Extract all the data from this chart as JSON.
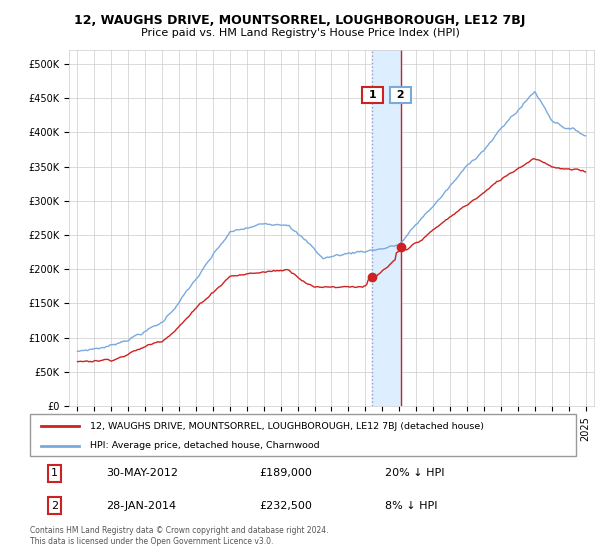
{
  "title": "12, WAUGHS DRIVE, MOUNTSORREL, LOUGHBOROUGH, LE12 7BJ",
  "subtitle": "Price paid vs. HM Land Registry's House Price Index (HPI)",
  "hpi_color": "#7aaadd",
  "price_color": "#cc2222",
  "sale1_date": 2012.41,
  "sale1_price": 189000,
  "sale2_date": 2014.08,
  "sale2_price": 232500,
  "highlight_color": "#ddeeff",
  "legend_line1": "12, WAUGHS DRIVE, MOUNTSORREL, LOUGHBOROUGH, LE12 7BJ (detached house)",
  "legend_line2": "HPI: Average price, detached house, Charnwood",
  "table_row1": [
    "1",
    "30-MAY-2012",
    "£189,000",
    "20% ↓ HPI"
  ],
  "table_row2": [
    "2",
    "28-JAN-2014",
    "£232,500",
    "8% ↓ HPI"
  ],
  "footnote": "Contains HM Land Registry data © Crown copyright and database right 2024.\nThis data is licensed under the Open Government Licence v3.0.",
  "xlim_left": 1994.5,
  "xlim_right": 2025.5,
  "ylim_top": 520000,
  "xticks": [
    1995,
    1996,
    1997,
    1998,
    1999,
    2000,
    2001,
    2002,
    2003,
    2004,
    2005,
    2006,
    2007,
    2008,
    2009,
    2010,
    2011,
    2012,
    2013,
    2014,
    2015,
    2016,
    2017,
    2018,
    2019,
    2020,
    2021,
    2022,
    2023,
    2024,
    2025
  ],
  "yticks": [
    0,
    50000,
    100000,
    150000,
    200000,
    250000,
    300000,
    350000,
    400000,
    450000,
    500000
  ],
  "ytick_labels": [
    "£0",
    "£50K",
    "£100K",
    "£150K",
    "£200K",
    "£250K",
    "£300K",
    "£350K",
    "£400K",
    "£450K",
    "£500K"
  ]
}
